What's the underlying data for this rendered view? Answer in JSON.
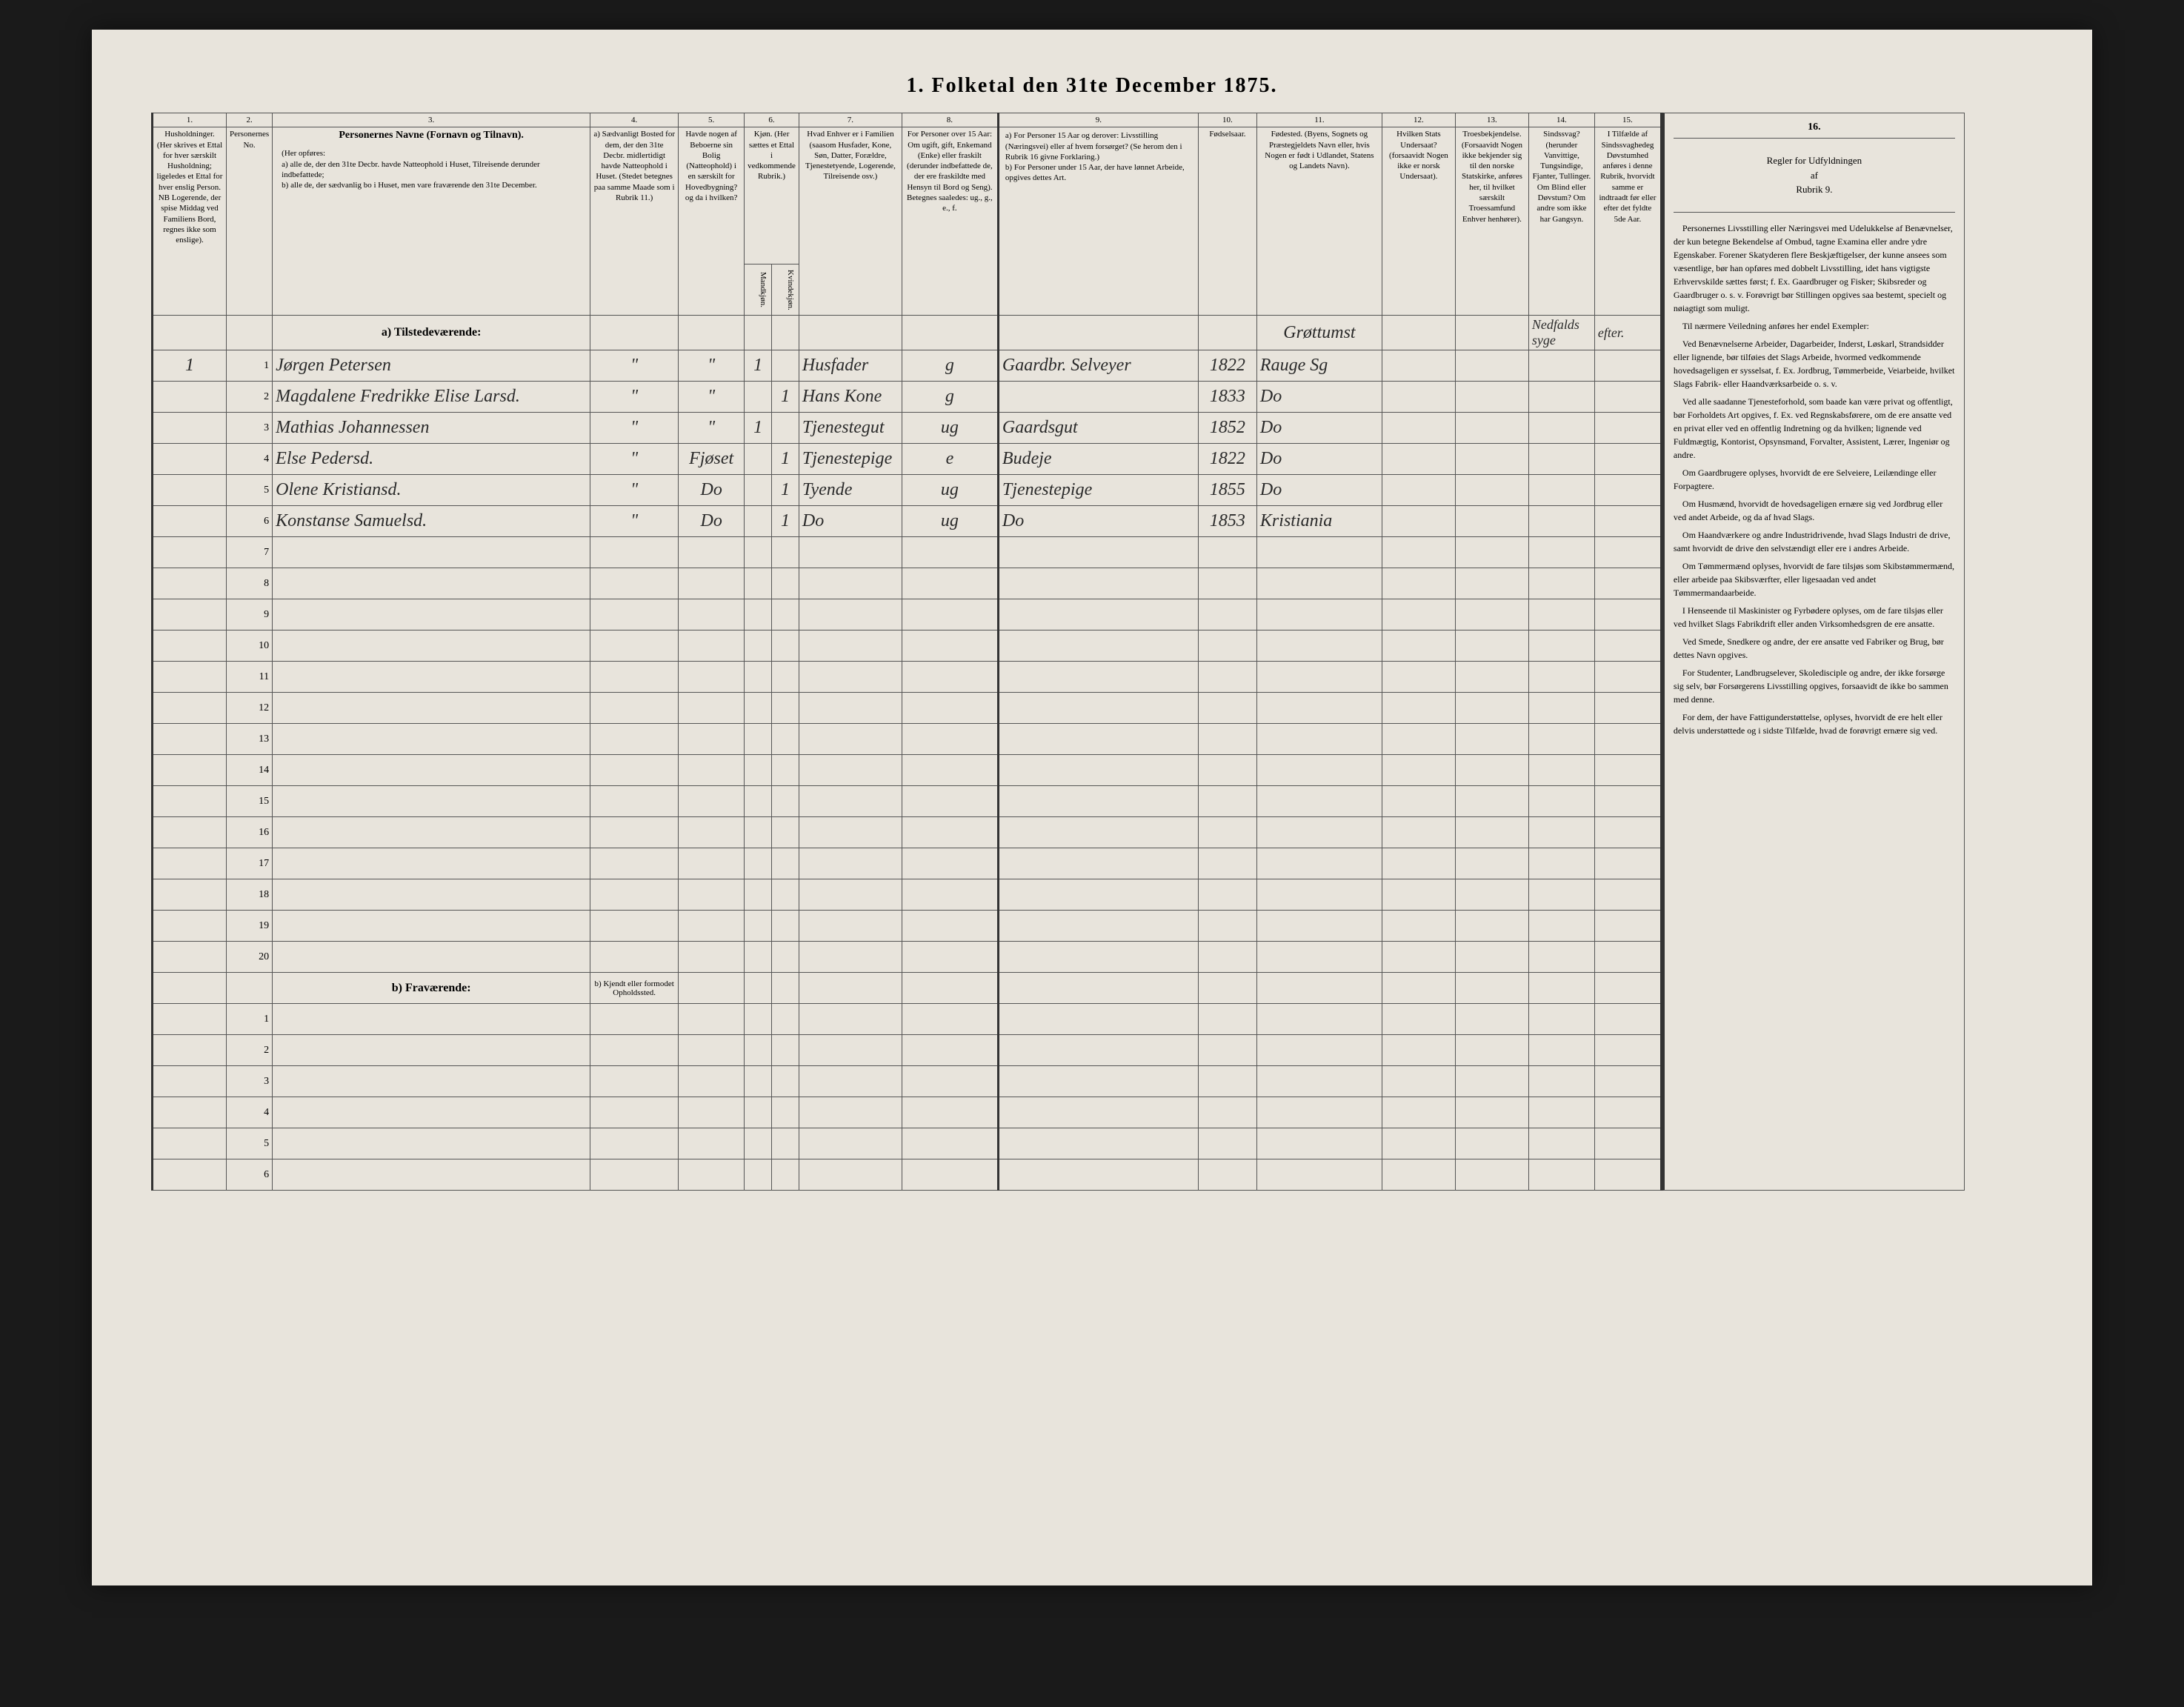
{
  "title": "1. Folketal den 31te December 1875.",
  "columnNumbers": [
    "1.",
    "2.",
    "3.",
    "4.",
    "5.",
    "6.",
    "7.",
    "8.",
    "9.",
    "10.",
    "11.",
    "12.",
    "13.",
    "14.",
    "15.",
    "16."
  ],
  "headers": {
    "col1": "Husholdninger. (Her skrives et Ettal for hver særskilt Husholdning; ligeledes et Ettal for hver enslig Person. NB Logerende, der spise Middag ved Familiens Bord, regnes ikke som enslige).",
    "col2": "Personernes No.",
    "col3_title": "Personernes Navne (Fornavn og Tilnavn).",
    "col3_sub": "(Her opføres:\na) alle de, der den 31te Decbr. havde Natteophold i Huset, Tilreisende derunder indbefattede;\nb) alle de, der sædvanlig bo i Huset, men vare fraværende den 31te December.",
    "col4": "a) Sædvanligt Bosted for dem, der den 31te Decbr. midlertidigt havde Natteophold i Huset. (Stedet betegnes paa samme Maade som i Rubrik 11.)",
    "col5": "Havde nogen af Beboerne sin Bolig (Natteophold) i en særskilt for Hovedbygning? og da i hvilken?",
    "col6": "Kjøn. (Her sættes et Ettal i vedkommende Rubrik.)",
    "col6a": "Mandkjøn.",
    "col6b": "Kvindekjøn.",
    "col7": "Hvad Enhver er i Familien (saasom Husfader, Kone, Søn, Datter, Forældre, Tjenestetyende, Logerende, Tilreisende osv.)",
    "col8": "For Personer over 15 Aar: Om ugift, gift, Enkemand (Enke) eller fraskilt (derunder indbefattede de, der ere fraskildte med Hensyn til Bord og Seng). Betegnes saaledes: ug., g., e., f.",
    "col9": "a) For Personer 15 Aar og derover: Livsstilling (Næringsvei) eller af hvem forsørget? (Se herom den i Rubrik 16 givne Forklaring.)\nb) For Personer under 15 Aar, der have lønnet Arbeide, opgives dettes Art.",
    "col10": "Fødselsaar.",
    "col11": "Fødested. (Byens, Sognets og Præstegjeldets Navn eller, hvis Nogen er født i Udlandet, Statens og Landets Navn).",
    "col12": "Hvilken Stats Undersaat? (forsaavidt Nogen ikke er norsk Undersaat).",
    "col13": "Troesbekjendelse. (Forsaavidt Nogen ikke bekjender sig til den norske Statskirke, anføres her, til hvilket særskilt Troessamfund Enhver henhører).",
    "col14": "Sindssvag? (herunder Vanvittige, Tungsindige, Fjanter, Tullinger. Om Blind eller Døvstum? Om andre som ikke har Gangsyn.",
    "col15": "I Tilfælde af Sindssvaghedeg Døvstumhed anføres i denne Rubrik, hvorvidt samme er indtraadt før eller efter det fyldte 5de Aar.",
    "col16_title": "Regler for Udfyldningen af Rubrik 9."
  },
  "sectionA": "a) Tilstedeværende:",
  "sectionB": "b) Fraværende:",
  "sectionB_col4": "b) Kjendt eller formodet Opholdssted.",
  "locality": "Grøttumst",
  "col14_header_hand": "Nedfalds syge",
  "col15_header_hand": "efter.",
  "rows": [
    {
      "num": "1",
      "household": "1",
      "name": "Jørgen Petersen",
      "col5": "",
      "sex_m": "1",
      "sex_k": "",
      "family": "Husfader",
      "civil": "g",
      "occupation": "Gaardbr. Selveyer",
      "year": "1822",
      "birthplace": "Rauge Sg"
    },
    {
      "num": "2",
      "household": "",
      "name": "Magdalene Fredrikke Elise Larsd.",
      "col5": "",
      "sex_m": "",
      "sex_k": "1",
      "family": "Hans Kone",
      "civil": "g",
      "occupation": "",
      "year": "1833",
      "birthplace": "Do"
    },
    {
      "num": "3",
      "household": "",
      "name": "Mathias Johannessen",
      "col5": "",
      "sex_m": "1",
      "sex_k": "",
      "family": "Tjenestegut",
      "civil": "ug",
      "occupation": "Gaardsgut",
      "year": "1852",
      "birthplace": "Do"
    },
    {
      "num": "4",
      "household": "",
      "name": "Else Pedersd.",
      "col5": "Fjøset",
      "sex_m": "",
      "sex_k": "1",
      "family": "Tjenestepige",
      "civil": "e",
      "occupation": "Budeje",
      "year": "1822",
      "birthplace": "Do"
    },
    {
      "num": "5",
      "household": "",
      "name": "Olene Kristiansd.",
      "col5": "Do",
      "sex_m": "",
      "sex_k": "1",
      "family": "Tyende",
      "civil": "ug",
      "occupation": "Tjenestepige",
      "year": "1855",
      "birthplace": "Do"
    },
    {
      "num": "6",
      "household": "",
      "name": "Konstanse Samuelsd.",
      "col5": "Do",
      "sex_m": "",
      "sex_k": "1",
      "family": "Do",
      "civil": "ug",
      "occupation": "Do",
      "year": "1853",
      "birthplace": "Kristiania"
    }
  ],
  "emptyRowsA": [
    7,
    8,
    9,
    10,
    11,
    12,
    13,
    14,
    15,
    16,
    17,
    18,
    19,
    20
  ],
  "emptyRowsB": [
    1,
    2,
    3,
    4,
    5,
    6
  ],
  "sidebar": {
    "title": "Regler for Udfyldningen\naf\nRubrik 9.",
    "paragraphs": [
      "Personernes Livsstilling eller Næringsvei med Udelukkelse af Benævnelser, der kun betegne Bekendelse af Ombud, tagne Examina eller andre ydre Egenskaber. Forener Skatyderen flere Beskjæftigelser, der kunne ansees som væsentlige, bør han opføres med dobbelt Livsstilling, idet hans vigtigste Erhvervskilde sættes først; f. Ex. Gaardbruger og Fisker; Skibsreder og Gaardbruger o. s. v. Forøvrigt bør Stillingen opgives saa bestemt, specielt og nøiagtigt som muligt.",
      "Til nærmere Veiledning anføres her endel Exempler:",
      "Ved Benævnelserne Arbeider, Dagarbeider, Inderst, Løskarl, Strandsidder eller lignende, bør tilføies det Slags Arbeide, hvormed vedkommende hovedsageligen er sysselsat, f. Ex. Jordbrug, Tømmerbeide, Veiarbeide, hvilket Slags Fabrik- eller Haandværksarbeide o. s. v.",
      "Ved alle saadanne Tjenesteforhold, som baade kan være privat og offentligt, bør Forholdets Art opgives, f. Ex. ved Regnskabsførere, om de ere ansatte ved en privat eller ved en offentlig Indretning og da hvilken; lignende ved Fuldmægtig, Kontorist, Opsynsmand, Forvalter, Assistent, Lærer, Ingeniør og andre.",
      "Om Gaardbrugere oplyses, hvorvidt de ere Selveiere, Leilændinge eller Forpagtere.",
      "Om Husmænd, hvorvidt de hovedsageligen ernære sig ved Jordbrug eller ved andet Arbeide, og da af hvad Slags.",
      "Om Haandværkere og andre Industridrivende, hvad Slags Industri de drive, samt hvorvidt de drive den selvstændigt eller ere i andres Arbeide.",
      "Om Tømmermænd oplyses, hvorvidt de fare tilsjøs som Skibstømmermænd, eller arbeide paa Skibsværfter, eller ligesaadan ved andet Tømmermandaarbeide.",
      "I Henseende til Maskinister og Fyrbødere oplyses, om de fare tilsjøs eller ved hvilket Slags Fabrikdrift eller anden Virksomhedsgren de ere ansatte.",
      "Ved Smede, Snedkere og andre, der ere ansatte ved Fabriker og Brug, bør dettes Navn opgives.",
      "For Studenter, Landbrugselever, Skoledisciple og andre, der ikke forsørge sig selv, bør Forsørgerens Livsstilling opgives, forsaavidt de ikke bo sammen med denne.",
      "For dem, der have Fattigunderstøttelse, oplyses, hvorvidt de ere helt eller delvis understøttede og i sidste Tilfælde, hvad de forøvrigt ernære sig ved."
    ]
  }
}
